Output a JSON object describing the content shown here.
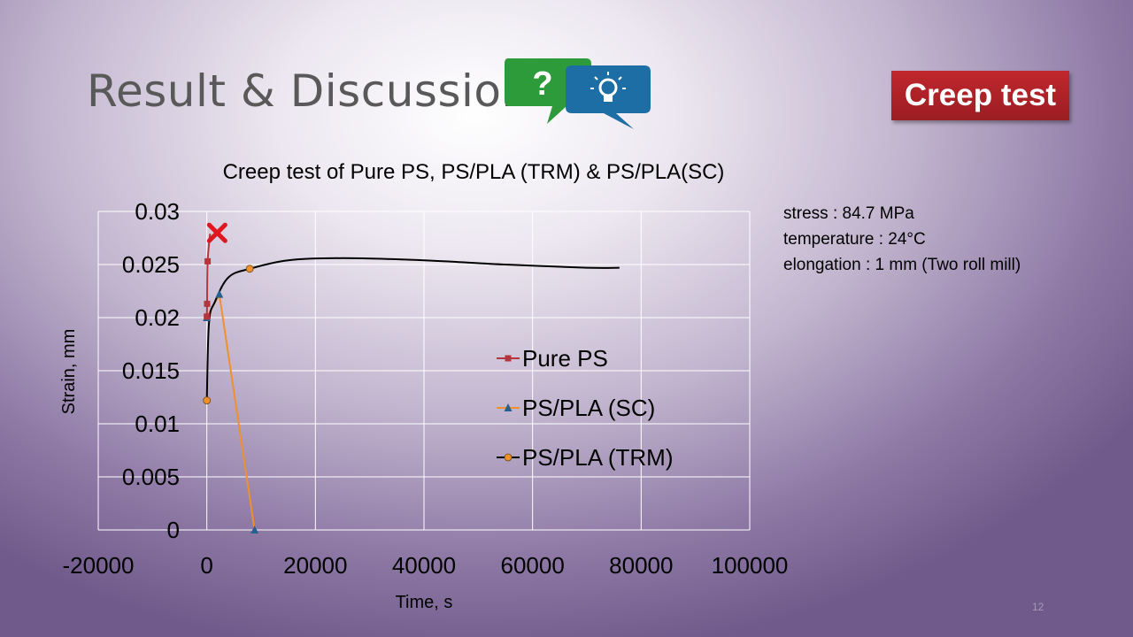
{
  "slide": {
    "title": "Result & Discussion",
    "badge": "Creep test",
    "page_number": "12",
    "conditions": [
      "stress : 84.7 MPa",
      "temperature : 24°C",
      "elongation : 1 mm (Two roll mill)"
    ],
    "colors": {
      "badge": "#a6232a",
      "bubble_green": "#2e9b3a",
      "bubble_blue": "#1c6ea4"
    },
    "icons": [
      "question-bubble-icon",
      "lightbulb-bubble-icon",
      "failure-x-icon"
    ]
  },
  "chart_data": {
    "type": "scatter",
    "title": "Creep test of Pure PS, PS/PLA (TRM) & PS/PLA(SC)",
    "xlabel": "Time, s",
    "ylabel": "Strain, mm",
    "xlim": [
      -20000,
      100000
    ],
    "ylim": [
      0,
      0.03
    ],
    "x_ticks": [
      "-20000",
      "0",
      "20000",
      "40000",
      "60000",
      "80000",
      "100000"
    ],
    "y_ticks": [
      "0",
      "0.005",
      "0.01",
      "0.015",
      "0.02",
      "0.025",
      "0.03"
    ],
    "grid": true,
    "legend_position": "right",
    "series": [
      {
        "name": "Pure PS",
        "color": "#b3363c",
        "marker": "square",
        "line": "smooth",
        "points": [
          [
            0,
            0.0201
          ],
          [
            50,
            0.0213
          ],
          [
            150,
            0.0253
          ],
          [
            600,
            0.0279
          ]
        ],
        "end_marker": "failure-x"
      },
      {
        "name": "PS/PLA (SC)",
        "color": "#f0902c",
        "marker_color": "#27608f",
        "marker": "triangle",
        "line": "straight",
        "points": [
          [
            0,
            0.02
          ],
          [
            2300,
            0.0222
          ],
          [
            8800,
            0
          ]
        ]
      },
      {
        "name": "PS/PLA (TRM)",
        "color": "#000000",
        "marker_color": "#f0902c",
        "marker": "circle",
        "line": "smooth",
        "points": [
          [
            0,
            0.0122
          ],
          [
            400,
            0.0195
          ],
          [
            1500,
            0.0215
          ],
          [
            4000,
            0.0238
          ],
          [
            7900,
            0.0246
          ],
          [
            15000,
            0.0254
          ],
          [
            25000,
            0.0256
          ],
          [
            40000,
            0.0254
          ],
          [
            55000,
            0.025
          ],
          [
            70000,
            0.0247
          ],
          [
            76000,
            0.0247
          ]
        ],
        "marked_points": [
          [
            0,
            0.0122
          ],
          [
            7900,
            0.0246
          ]
        ]
      }
    ]
  }
}
